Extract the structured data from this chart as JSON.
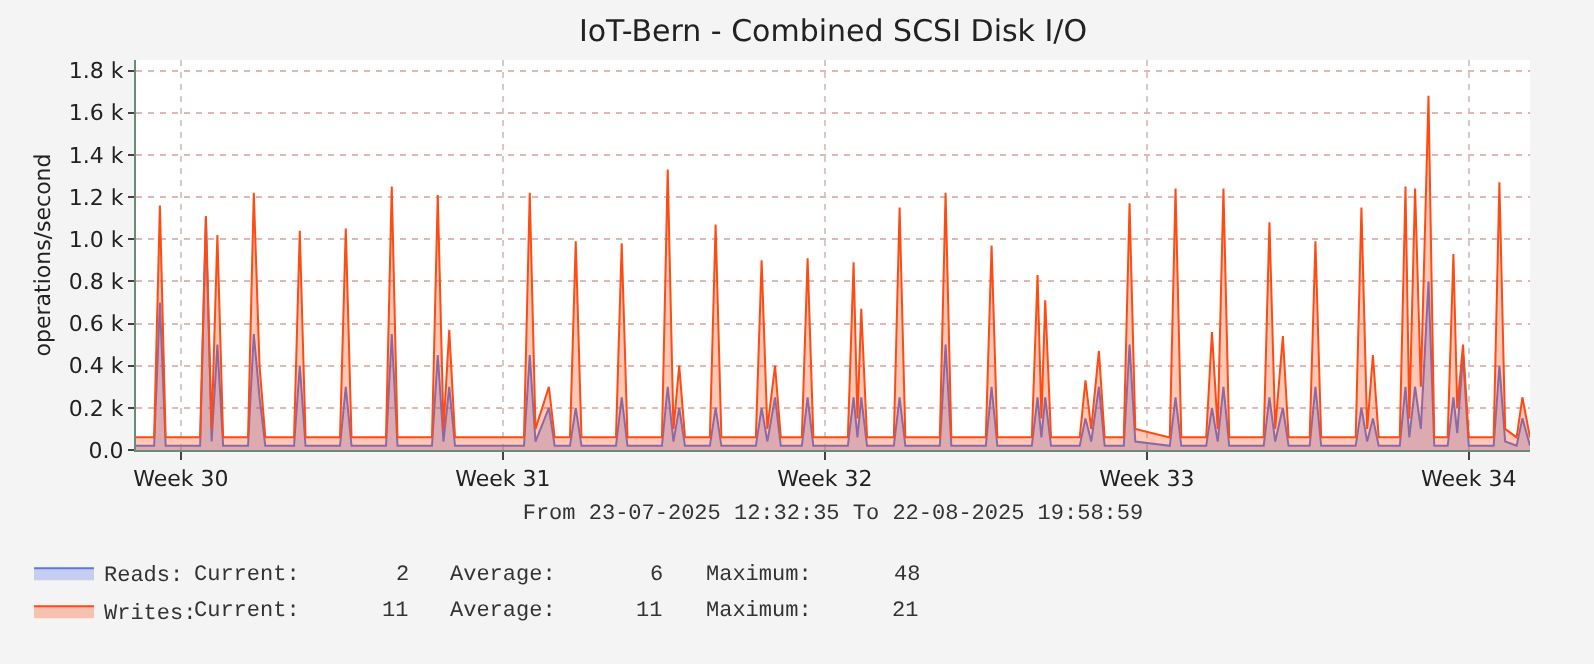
{
  "chart_data": {
    "type": "area",
    "title": "IoT-Bern - Combined SCSI Disk I/O",
    "ylabel": "operations/second",
    "xlabel": "From 23-07-2025 12:32:35 To 22-08-2025 19:58:59",
    "x": [
      "2025-07-23T12:32",
      "2025-07-23T22:00",
      "2025-07-24T01:00",
      "2025-07-24T04:00",
      "2025-07-24T22:00",
      "2025-07-25T01:00",
      "2025-07-25T04:00",
      "2025-07-25T07:00",
      "2025-07-25T10:00",
      "2025-07-25T23:00",
      "2025-07-26T02:00",
      "2025-07-26T05:00",
      "2025-07-26T08:00",
      "2025-07-26T23:00",
      "2025-07-27T02:00",
      "2025-07-27T05:00",
      "2025-07-27T23:00",
      "2025-07-28T02:00",
      "2025-07-28T05:00",
      "2025-07-28T23:00",
      "2025-07-29T02:00",
      "2025-07-29T05:00",
      "2025-07-29T23:00",
      "2025-07-30T02:00",
      "2025-07-30T05:00",
      "2025-07-30T08:00",
      "2025-07-30T11:00",
      "2025-07-31T23:00",
      "2025-08-01T02:00",
      "2025-08-01T05:00",
      "2025-08-01T12:00",
      "2025-08-01T15:00",
      "2025-08-01T23:00",
      "2025-08-02T02:00",
      "2025-08-02T05:00",
      "2025-08-02T23:00",
      "2025-08-03T02:00",
      "2025-08-03T05:00",
      "2025-08-03T23:00",
      "2025-08-04T02:00",
      "2025-08-04T05:00",
      "2025-08-04T08:00",
      "2025-08-04T11:00",
      "2025-08-05T00:00",
      "2025-08-05T03:00",
      "2025-08-05T06:00",
      "2025-08-06T00:00",
      "2025-08-06T03:00",
      "2025-08-06T06:00",
      "2025-08-06T10:00",
      "2025-08-06T13:00",
      "2025-08-07T00:00",
      "2025-08-07T03:00",
      "2025-08-07T06:00",
      "2025-08-08T00:00",
      "2025-08-08T03:00",
      "2025-08-08T05:00",
      "2025-08-08T07:00",
      "2025-08-08T10:00",
      "2025-08-09T00:00",
      "2025-08-09T03:00",
      "2025-08-09T06:00",
      "2025-08-10T00:00",
      "2025-08-10T03:00",
      "2025-08-10T06:00",
      "2025-08-11T00:00",
      "2025-08-11T03:00",
      "2025-08-11T06:00",
      "2025-08-12T00:00",
      "2025-08-12T03:00",
      "2025-08-12T05:00",
      "2025-08-12T07:00",
      "2025-08-12T10:00",
      "2025-08-13T01:00",
      "2025-08-13T04:00",
      "2025-08-13T07:00",
      "2025-08-13T11:00",
      "2025-08-13T14:00",
      "2025-08-14T00:00",
      "2025-08-14T03:00",
      "2025-08-14T06:00",
      "2025-08-15T00:00",
      "2025-08-15T03:00",
      "2025-08-15T06:00",
      "2025-08-15T19:00",
      "2025-08-15T22:00",
      "2025-08-16T01:00",
      "2025-08-16T04:00",
      "2025-08-16T07:00",
      "2025-08-17T01:00",
      "2025-08-17T04:00",
      "2025-08-17T07:00",
      "2025-08-17T11:00",
      "2025-08-17T14:00",
      "2025-08-18T01:00",
      "2025-08-18T04:00",
      "2025-08-18T07:00",
      "2025-08-19T01:00",
      "2025-08-19T04:00",
      "2025-08-19T07:00",
      "2025-08-19T10:00",
      "2025-08-19T13:00",
      "2025-08-20T00:00",
      "2025-08-20T03:00",
      "2025-08-20T05:00",
      "2025-08-20T08:00",
      "2025-08-20T11:00",
      "2025-08-20T15:00",
      "2025-08-20T18:00",
      "2025-08-21T01:00",
      "2025-08-21T04:00",
      "2025-08-21T06:00",
      "2025-08-21T09:00",
      "2025-08-21T12:00",
      "2025-08-22T01:00",
      "2025-08-22T04:00",
      "2025-08-22T07:00",
      "2025-08-22T13:00",
      "2025-08-22T16:00",
      "2025-08-22T19:58"
    ],
    "series": [
      {
        "name": "Reads:",
        "color": "#5b78e6",
        "values": [
          20,
          20,
          700,
          20,
          20,
          1100,
          40,
          500,
          20,
          20,
          550,
          250,
          20,
          20,
          400,
          20,
          20,
          300,
          20,
          20,
          550,
          20,
          20,
          450,
          40,
          300,
          20,
          20,
          450,
          40,
          200,
          20,
          20,
          200,
          20,
          20,
          250,
          20,
          20,
          300,
          40,
          200,
          20,
          20,
          200,
          20,
          20,
          200,
          40,
          250,
          20,
          20,
          250,
          20,
          20,
          250,
          60,
          250,
          20,
          20,
          250,
          20,
          20,
          500,
          20,
          20,
          300,
          20,
          20,
          250,
          60,
          250,
          20,
          20,
          150,
          40,
          300,
          20,
          20,
          500,
          40,
          20,
          250,
          20,
          20,
          200,
          40,
          300,
          20,
          20,
          250,
          40,
          200,
          20,
          20,
          300,
          20,
          20,
          200,
          40,
          150,
          20,
          20,
          300,
          60,
          300,
          100,
          800,
          20,
          20,
          250,
          80,
          450,
          20,
          20,
          400,
          40,
          20,
          150,
          20
        ]
      },
      {
        "name": "Writes:",
        "color": "#ff4a12",
        "values": [
          60,
          60,
          1160,
          60,
          60,
          1110,
          100,
          1020,
          60,
          60,
          1220,
          400,
          60,
          60,
          1040,
          60,
          60,
          1050,
          60,
          60,
          1250,
          60,
          60,
          1210,
          100,
          570,
          60,
          60,
          1220,
          100,
          300,
          60,
          60,
          990,
          60,
          60,
          980,
          60,
          60,
          1330,
          100,
          400,
          60,
          60,
          1070,
          60,
          60,
          900,
          100,
          400,
          60,
          60,
          910,
          60,
          60,
          890,
          150,
          670,
          60,
          60,
          1150,
          60,
          60,
          1220,
          60,
          60,
          970,
          60,
          60,
          830,
          150,
          710,
          60,
          60,
          330,
          100,
          470,
          60,
          60,
          1170,
          100,
          60,
          1240,
          60,
          60,
          560,
          100,
          1240,
          60,
          60,
          1080,
          100,
          540,
          60,
          60,
          990,
          60,
          60,
          1150,
          100,
          450,
          60,
          60,
          1250,
          150,
          1240,
          300,
          1680,
          60,
          60,
          930,
          200,
          500,
          60,
          60,
          1270,
          100,
          60,
          250,
          60
        ]
      }
    ],
    "xlim": [
      "2025-07-23T12:32",
      "2025-08-22T19:58"
    ],
    "xticks": [
      {
        "value": "2025-07-24T12:00",
        "label": "Week 30"
      },
      {
        "value": "2025-07-31T12:00",
        "label": "Week 31"
      },
      {
        "value": "2025-08-07T12:00",
        "label": "Week 32"
      },
      {
        "value": "2025-08-14T12:00",
        "label": "Week 33"
      },
      {
        "value": "2025-08-21T12:00",
        "label": "Week 34"
      }
    ],
    "ylim": [
      0,
      1850
    ],
    "yticks": [
      {
        "value": 0,
        "label": "0.0"
      },
      {
        "value": 200,
        "label": "0.2 k"
      },
      {
        "value": 400,
        "label": "0.4 k"
      },
      {
        "value": 600,
        "label": "0.6 k"
      },
      {
        "value": 800,
        "label": "0.8 k"
      },
      {
        "value": 1000,
        "label": "1.0 k"
      },
      {
        "value": 1200,
        "label": "1.2 k"
      },
      {
        "value": 1400,
        "label": "1.4 k"
      },
      {
        "value": 1600,
        "label": "1.6 k"
      },
      {
        "value": 1800,
        "label": "1.8 k"
      }
    ],
    "grid": true,
    "legend": "bottom left",
    "annotations": [
      "Current:",
      "2",
      "Average:",
      "6",
      "Maximum:",
      "48",
      "Current:",
      "11",
      "Average:",
      "11",
      "Maximum:",
      "21"
    ]
  }
}
